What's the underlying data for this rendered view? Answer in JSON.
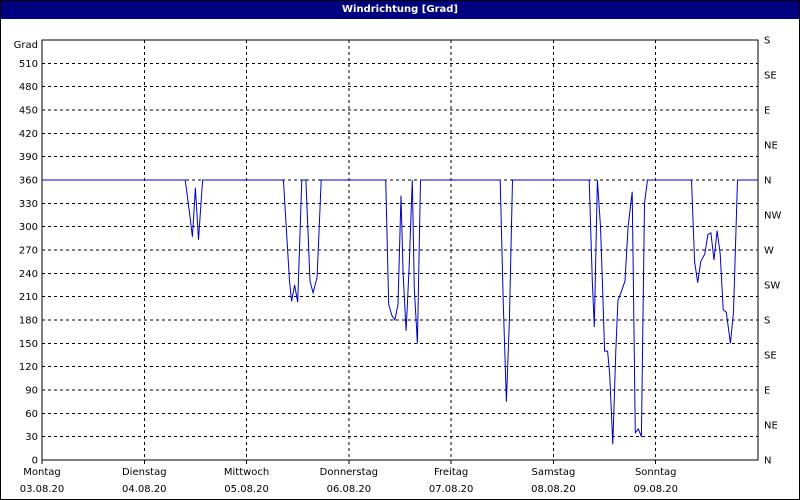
{
  "window": {
    "title": "Windrichtung [Grad]"
  },
  "chart_data": {
    "type": "line",
    "title": "Windrichtung [Grad]",
    "ylabel": "Grad",
    "ylim": [
      0,
      540
    ],
    "yticks": [
      0,
      30,
      60,
      90,
      120,
      150,
      180,
      210,
      240,
      270,
      300,
      330,
      360,
      390,
      420,
      450,
      480,
      510
    ],
    "right_axis_labels": [
      {
        "value": 0,
        "label": "N"
      },
      {
        "value": 45,
        "label": "NE"
      },
      {
        "value": 90,
        "label": "E"
      },
      {
        "value": 135,
        "label": "SE"
      },
      {
        "value": 180,
        "label": "S"
      },
      {
        "value": 225,
        "label": "SW"
      },
      {
        "value": 270,
        "label": "W"
      },
      {
        "value": 315,
        "label": "NW"
      },
      {
        "value": 360,
        "label": "N"
      },
      {
        "value": 405,
        "label": "NE"
      },
      {
        "value": 450,
        "label": "E"
      },
      {
        "value": 495,
        "label": "SE"
      },
      {
        "value": 540,
        "label": "S"
      }
    ],
    "xlim": [
      0,
      7
    ],
    "days": [
      {
        "day": "Montag",
        "date": "03.08.20"
      },
      {
        "day": "Dienstag",
        "date": "04.08.20"
      },
      {
        "day": "Mittwoch",
        "date": "05.08.20"
      },
      {
        "day": "Donnerstag",
        "date": "06.08.20"
      },
      {
        "day": "Freitag",
        "date": "07.08.20"
      },
      {
        "day": "Samstag",
        "date": "08.08.20"
      },
      {
        "day": "Sonntag",
        "date": "09.08.20"
      }
    ],
    "grid": true,
    "series": [
      {
        "color": "#0000cc",
        "points": [
          [
            0.0,
            360
          ],
          [
            1.4,
            360
          ],
          [
            1.44,
            320
          ],
          [
            1.47,
            287
          ],
          [
            1.5,
            350
          ],
          [
            1.53,
            283
          ],
          [
            1.57,
            360
          ],
          [
            2.36,
            360
          ],
          [
            2.42,
            230
          ],
          [
            2.44,
            204
          ],
          [
            2.47,
            225
          ],
          [
            2.5,
            203
          ],
          [
            2.54,
            360
          ],
          [
            2.58,
            360
          ],
          [
            2.62,
            230
          ],
          [
            2.65,
            215
          ],
          [
            2.69,
            235
          ],
          [
            2.73,
            360
          ],
          [
            3.36,
            360
          ],
          [
            3.39,
            200
          ],
          [
            3.42,
            186
          ],
          [
            3.45,
            180
          ],
          [
            3.48,
            200
          ],
          [
            3.51,
            340
          ],
          [
            3.53,
            240
          ],
          [
            3.56,
            166
          ],
          [
            3.59,
            250
          ],
          [
            3.62,
            360
          ],
          [
            3.64,
            220
          ],
          [
            3.67,
            150
          ],
          [
            3.7,
            360
          ],
          [
            3.72,
            360
          ],
          [
            4.48,
            360
          ],
          [
            4.51,
            200
          ],
          [
            4.54,
            75
          ],
          [
            4.57,
            180
          ],
          [
            4.6,
            360
          ],
          [
            5.35,
            360
          ],
          [
            5.38,
            230
          ],
          [
            5.4,
            171
          ],
          [
            5.43,
            360
          ],
          [
            5.46,
            300
          ],
          [
            5.48,
            225
          ],
          [
            5.5,
            140
          ],
          [
            5.53,
            140
          ],
          [
            5.55,
            110
          ],
          [
            5.58,
            20
          ],
          [
            5.61,
            140
          ],
          [
            5.63,
            205
          ],
          [
            5.66,
            215
          ],
          [
            5.7,
            230
          ],
          [
            5.73,
            300
          ],
          [
            5.77,
            345
          ],
          [
            5.8,
            35
          ],
          [
            5.83,
            40
          ],
          [
            5.86,
            30
          ],
          [
            5.89,
            330
          ],
          [
            5.92,
            360
          ],
          [
            6.35,
            360
          ],
          [
            6.38,
            255
          ],
          [
            6.41,
            228
          ],
          [
            6.44,
            255
          ],
          [
            6.48,
            265
          ],
          [
            6.51,
            290
          ],
          [
            6.54,
            292
          ],
          [
            6.57,
            257
          ],
          [
            6.6,
            295
          ],
          [
            6.63,
            265
          ],
          [
            6.66,
            193
          ],
          [
            6.69,
            190
          ],
          [
            6.73,
            150
          ],
          [
            6.76,
            190
          ],
          [
            6.8,
            360
          ],
          [
            7.0,
            360
          ]
        ]
      }
    ]
  }
}
